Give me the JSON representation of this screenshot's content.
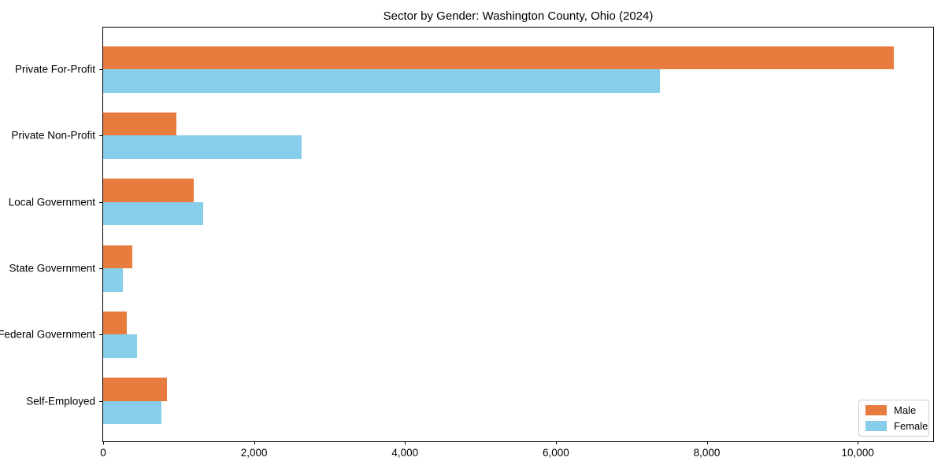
{
  "title": "Sector by Gender: Washington County, Ohio (2024)",
  "chart_data": {
    "type": "bar",
    "orientation": "horizontal",
    "title": "Sector by Gender: Washington County, Ohio (2024)",
    "xlabel": "",
    "ylabel": "",
    "categories": [
      "Private For-Profit",
      "Private Non-Profit",
      "Local Government",
      "State Government",
      "Federal Government",
      "Self-Employed"
    ],
    "series": [
      {
        "name": "Male",
        "color": "#E87B3E",
        "values": [
          10480,
          970,
          1200,
          385,
          310,
          845
        ]
      },
      {
        "name": "Female",
        "color": "#87CEEB",
        "values": [
          7380,
          2630,
          1330,
          260,
          450,
          770
        ]
      }
    ],
    "xlim": [
      0,
      11000
    ],
    "x_ticks": [
      0,
      2000,
      4000,
      6000,
      8000,
      10000
    ],
    "x_tick_labels": [
      "0",
      "2,000",
      "4,000",
      "6,000",
      "8,000",
      "10,000"
    ],
    "grid": false,
    "legend": {
      "position": "lower right",
      "entries": [
        "Male",
        "Female"
      ]
    },
    "colors": {
      "male": "#E87B3E",
      "female": "#87CEEB",
      "axis": "#000000",
      "background": "#ffffff"
    }
  }
}
